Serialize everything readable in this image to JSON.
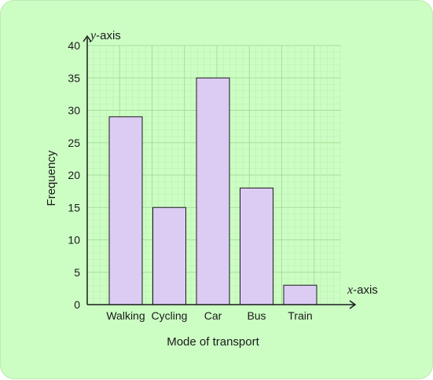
{
  "chart_data": {
    "type": "bar",
    "categories": [
      "Walking",
      "Cycling",
      "Car",
      "Bus",
      "Train"
    ],
    "values": [
      29,
      15,
      35,
      18,
      3
    ],
    "xlabel": "Mode of transport",
    "ylabel": "Frequency",
    "x_axis_name": "x-axis",
    "y_axis_name": "y-axis",
    "ylim": [
      0,
      40
    ],
    "yticks": [
      0,
      5,
      10,
      15,
      20,
      25,
      30,
      35,
      40
    ],
    "grid": true,
    "colors": {
      "background": "#ccfec4",
      "bar_fill": "#dcccf4",
      "bar_stroke": "#1a1a1a",
      "grid_major": "#a6dd98",
      "grid_minor": "#bcecb0",
      "axis": "#1a1a1a"
    }
  }
}
